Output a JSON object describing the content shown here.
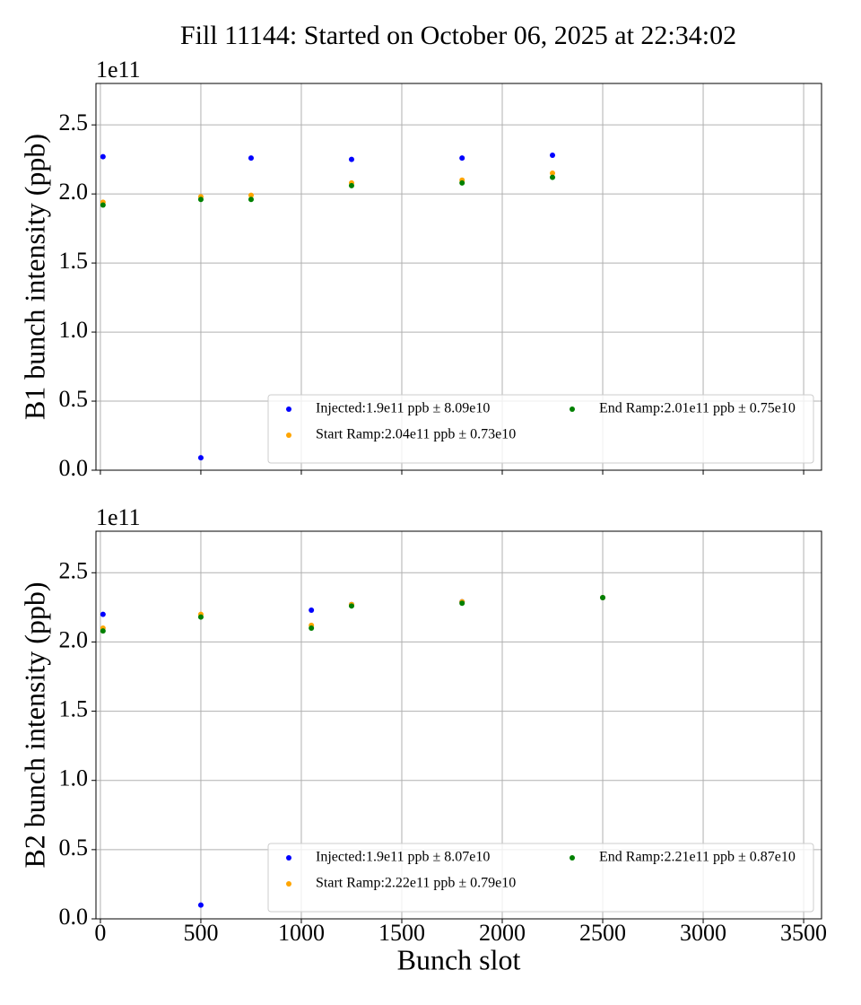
{
  "title": "Fill 11144: Started on October 06, 2025 at 22:34:02",
  "chart_data": [
    {
      "type": "scatter",
      "ylabel": "B1 bunch intensity (ppb)",
      "y_offset_label": "1e11",
      "x": [
        13,
        500,
        750,
        1250,
        1800,
        2250
      ],
      "series": [
        {
          "name": "Injected:1.9e11 ppb ± 8.09e10",
          "color": "blue",
          "values": [
            2.27,
            0.09,
            2.26,
            2.25,
            2.26,
            2.28
          ]
        },
        {
          "name": "Start Ramp:2.04e11 ppb ± 0.73e10",
          "color": "orange",
          "values": [
            1.94,
            1.98,
            1.99,
            2.08,
            2.1,
            2.15
          ]
        },
        {
          "name": "End Ramp:2.01e11 ppb ± 0.75e10",
          "color": "green",
          "values": [
            1.92,
            1.96,
            1.96,
            2.06,
            2.08,
            2.12
          ]
        }
      ],
      "xlim": [
        -22,
        3589
      ],
      "xticks": [
        0,
        500,
        1000,
        1500,
        2000,
        2500,
        3000,
        3500
      ],
      "show_xtick_labels": false,
      "ylim": [
        0,
        2.8
      ],
      "yticks": [
        {
          "value": 0,
          "label": "0.0"
        },
        {
          "value": 0.5,
          "label": "0.5"
        },
        {
          "value": 1,
          "label": "1.0"
        },
        {
          "value": 1.5,
          "label": "1.5"
        },
        {
          "value": 2,
          "label": "2.0"
        },
        {
          "value": 2.5,
          "label": "2.5"
        }
      ],
      "grid": true,
      "legend_loc": "lower right",
      "legend_columns": 2
    },
    {
      "type": "scatter",
      "ylabel": "B2 bunch intensity (ppb)",
      "xlabel": "Bunch slot",
      "y_offset_label": "1e11",
      "x": [
        13,
        500,
        1050,
        1250,
        1800,
        2500
      ],
      "series": [
        {
          "name": "Injected:1.9e11 ppb ± 8.07e10",
          "color": "blue",
          "values": [
            2.2,
            0.1,
            2.23,
            2.27,
            2.29,
            2.32
          ]
        },
        {
          "name": "Start Ramp:2.22e11 ppb ± 0.79e10",
          "color": "orange",
          "values": [
            2.1,
            2.2,
            2.12,
            2.27,
            2.29,
            2.32
          ]
        },
        {
          "name": "End Ramp:2.21e11 ppb ± 0.87e10",
          "color": "green",
          "values": [
            2.08,
            2.18,
            2.1,
            2.26,
            2.28,
            2.32
          ]
        }
      ],
      "xlim": [
        -22,
        3589
      ],
      "xticks": [
        0,
        500,
        1000,
        1500,
        2000,
        2500,
        3000,
        3500
      ],
      "show_xtick_labels": true,
      "ylim": [
        0,
        2.8
      ],
      "yticks": [
        {
          "value": 0,
          "label": "0.0"
        },
        {
          "value": 0.5,
          "label": "0.5"
        },
        {
          "value": 1,
          "label": "1.0"
        },
        {
          "value": 1.5,
          "label": "1.5"
        },
        {
          "value": 2,
          "label": "2.0"
        },
        {
          "value": 2.5,
          "label": "2.5"
        }
      ],
      "grid": true,
      "legend_loc": "lower right",
      "legend_columns": 2
    }
  ]
}
